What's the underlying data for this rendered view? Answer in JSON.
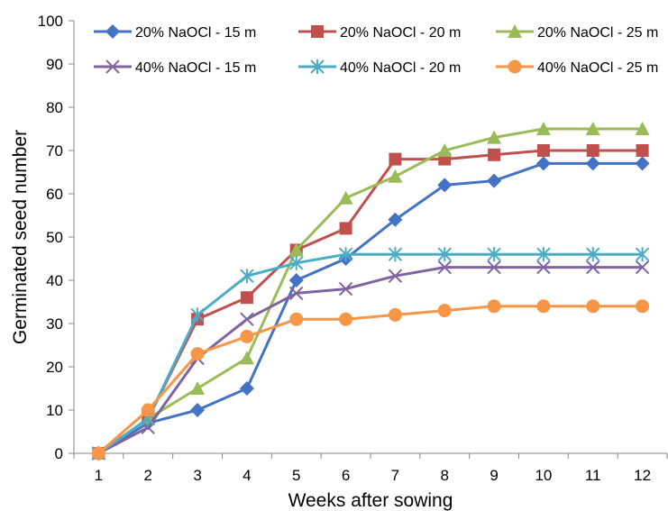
{
  "chart_data": {
    "type": "line",
    "title": "",
    "xlabel": "Weeks after sowing",
    "ylabel": "Germinated seed number",
    "x": [
      1,
      2,
      3,
      4,
      5,
      6,
      7,
      8,
      9,
      10,
      11,
      12
    ],
    "ylim": [
      0,
      100
    ],
    "yticks": [
      0,
      10,
      20,
      30,
      40,
      50,
      60,
      70,
      80,
      90,
      100
    ],
    "grid": false,
    "legend": "top",
    "series": [
      {
        "name": "20% NaOCl - 15 m",
        "color": "#4472C4",
        "marker": "diamond",
        "values": [
          0,
          7,
          10,
          15,
          40,
          45,
          54,
          62,
          63,
          67,
          67,
          67
        ]
      },
      {
        "name": "20% NaOCl - 20 m",
        "color": "#C0504D",
        "marker": "square",
        "values": [
          0,
          8,
          31,
          36,
          47,
          52,
          68,
          68,
          69,
          70,
          70,
          70
        ]
      },
      {
        "name": "20% NaOCl - 25 m",
        "color": "#9BBB59",
        "marker": "triangle",
        "values": [
          0,
          8,
          15,
          22,
          47,
          59,
          64,
          70,
          73,
          75,
          75,
          75
        ]
      },
      {
        "name": "40% NaOCl - 15 m",
        "color": "#8064A2",
        "marker": "x",
        "values": [
          0,
          6,
          22,
          31,
          37,
          38,
          41,
          43,
          43,
          43,
          43,
          43
        ]
      },
      {
        "name": "40% NaOCl - 20 m",
        "color": "#4BACC6",
        "marker": "star",
        "values": [
          0,
          8,
          32,
          41,
          44,
          46,
          46,
          46,
          46,
          46,
          46,
          46
        ]
      },
      {
        "name": "40% NaOCl - 25 m",
        "color": "#F79646",
        "marker": "circle",
        "values": [
          0,
          10,
          23,
          27,
          31,
          31,
          32,
          33,
          34,
          34,
          34,
          34
        ]
      }
    ]
  }
}
